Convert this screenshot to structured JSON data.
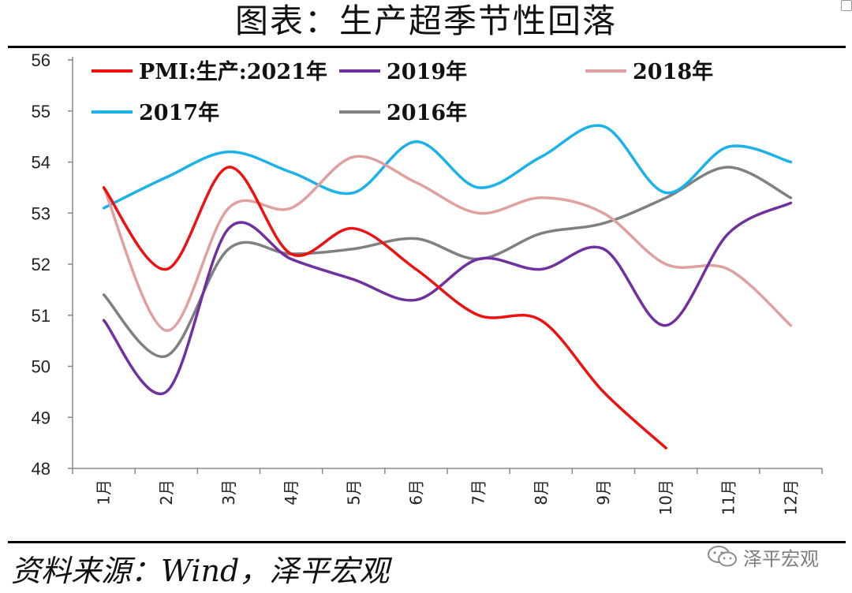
{
  "title": "图表：生产超季节性回落",
  "source": "资料来源：Wind，泽平宏观",
  "watermark": "泽平宏观",
  "chart_data": {
    "type": "line",
    "title": "图表：生产超季节性回落",
    "xlabel": "",
    "ylabel": "",
    "ylim": [
      48,
      56
    ],
    "yticks": [
      48,
      49,
      50,
      51,
      52,
      53,
      54,
      55,
      56
    ],
    "categories": [
      "1月",
      "2月",
      "3月",
      "4月",
      "5月",
      "6月",
      "7月",
      "8月",
      "9月",
      "10月",
      "11月",
      "12月"
    ],
    "legend_position": "top",
    "series": [
      {
        "name": "PMI:生产:2021年",
        "color": "#ee1111",
        "values": [
          53.5,
          51.9,
          53.9,
          52.2,
          52.7,
          51.9,
          51.0,
          50.9,
          49.5,
          48.4,
          null,
          null
        ]
      },
      {
        "name": "2019年",
        "color": "#7030a0",
        "values": [
          50.9,
          49.5,
          52.7,
          52.1,
          51.7,
          51.3,
          52.1,
          51.9,
          52.3,
          50.8,
          52.6,
          53.2
        ]
      },
      {
        "name": "2018年",
        "color": "#e0a0a0",
        "values": [
          53.5,
          50.7,
          53.1,
          53.1,
          54.1,
          53.6,
          53.0,
          53.3,
          53.0,
          52.0,
          51.9,
          50.8
        ]
      },
      {
        "name": "2017年",
        "color": "#1ab2e8",
        "values": [
          53.1,
          53.7,
          54.2,
          53.8,
          53.4,
          54.4,
          53.5,
          54.1,
          54.7,
          53.4,
          54.3,
          54.0
        ]
      },
      {
        "name": "2016年",
        "color": "#808080",
        "values": [
          51.4,
          50.2,
          52.3,
          52.2,
          52.3,
          52.5,
          52.1,
          52.6,
          52.8,
          53.3,
          53.9,
          53.3
        ]
      }
    ]
  }
}
